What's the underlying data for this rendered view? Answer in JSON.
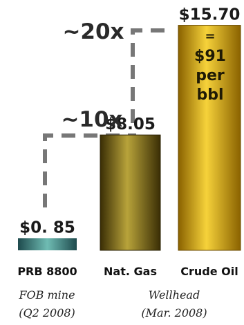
{
  "chart_data": {
    "type": "bar",
    "categories": [
      "PRB 8800",
      "Nat. Gas",
      "Crude Oil"
    ],
    "values": [
      0.85,
      8.05,
      15.7
    ],
    "value_labels": [
      "$0. 85",
      "$8.05",
      "$15.70"
    ],
    "ylim": [
      0,
      16.5
    ],
    "grid": false,
    "legend": "none",
    "group_notes": [
      {
        "line1": "FOB mine",
        "line2": "(Q2 2008)"
      },
      {
        "line1": "Wellhead",
        "line2": "(Mar. 2008)"
      }
    ],
    "in_bar_note": [
      "=",
      "$91",
      "per",
      "bbl"
    ],
    "multipliers": [
      "~10x",
      "~20x"
    ],
    "colors": {
      "coal_dark": "#1e4a4d",
      "coal_light": "#6fbcb3",
      "gas_dark": "#3a2e05",
      "gas_light": "#b8a33a",
      "oil_dark": "#8a6200",
      "oil_light": "#f6d23a",
      "dash": "#777777"
    }
  }
}
